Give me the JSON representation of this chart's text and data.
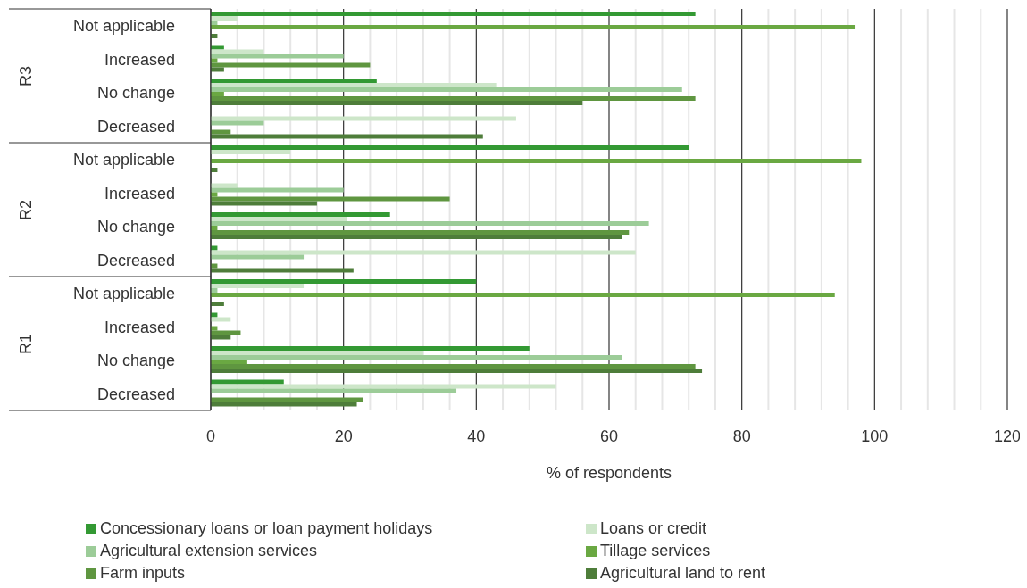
{
  "chart_data": {
    "type": "bar",
    "orientation": "horizontal",
    "xlabel": "% of respondents",
    "categories": [
      "Not applicable",
      "Increased",
      "No change",
      "Decreased",
      "Not applicable",
      "Increased",
      "No change",
      "Decreased",
      "Not applicable",
      "Increased",
      "No change",
      "Decreased"
    ],
    "annotations": [
      "R3",
      "R2",
      "R1"
    ],
    "series": [
      {
        "name": "Concessionary loans or loan payment holidays",
        "color": "#339933",
        "values": [
          73,
          2,
          25,
          null,
          72,
          null,
          27,
          1,
          40,
          1,
          48,
          11
        ]
      },
      {
        "name": "Loans or credit",
        "color": "#cde6c9",
        "values": [
          4,
          8,
          43,
          46,
          12,
          4,
          20.5,
          64,
          14,
          3,
          32,
          52
        ]
      },
      {
        "name": "Agricultural extension services",
        "color": "#9ccc98",
        "values": [
          1,
          20,
          71,
          8,
          null,
          20,
          66,
          14,
          1,
          null,
          62,
          37
        ]
      },
      {
        "name": "Tillage services",
        "color": "#6aa842",
        "values": [
          97,
          1,
          2,
          null,
          98,
          1,
          1,
          null,
          94,
          1,
          5.5,
          null
        ]
      },
      {
        "name": "Farm inputs",
        "color": "#5f9640",
        "values": [
          null,
          24,
          73,
          3,
          null,
          36,
          63,
          1,
          null,
          4.5,
          73,
          23
        ]
      },
      {
        "name": "Agricultural land to rent",
        "color": "#4e7d3a",
        "values": [
          1,
          2,
          56,
          41,
          1,
          16,
          62,
          21.5,
          2,
          3,
          74,
          22
        ]
      }
    ],
    "xlim": [
      0,
      120
    ],
    "xticks": [
      0,
      {
        "value": 4,
        "label": null
      },
      {
        "value": 8,
        "label": null
      },
      {
        "value": 12,
        "label": null
      },
      {
        "value": 16,
        "label": null
      },
      20,
      {
        "value": 24,
        "label": null
      },
      {
        "value": 28,
        "label": null
      },
      {
        "value": 32,
        "label": null
      },
      {
        "value": 36,
        "label": null
      },
      40,
      {
        "value": 44,
        "label": null
      },
      {
        "value": 48,
        "label": null
      },
      {
        "value": 52,
        "label": null
      },
      {
        "value": 56,
        "label": null
      },
      60,
      {
        "value": 64,
        "label": null
      },
      {
        "value": 68,
        "label": null
      },
      {
        "value": 72,
        "label": null
      },
      {
        "value": 76,
        "label": null
      },
      80,
      {
        "value": 84,
        "label": null
      },
      {
        "value": 88,
        "label": null
      },
      {
        "value": 92,
        "label": null
      },
      {
        "value": 96,
        "label": null
      },
      100,
      {
        "value": 104,
        "label": null
      },
      {
        "value": 108,
        "label": null
      },
      {
        "value": 112,
        "label": null
      },
      {
        "value": 116,
        "label": null
      },
      120
    ],
    "grid": "x",
    "legend": "bottom"
  }
}
